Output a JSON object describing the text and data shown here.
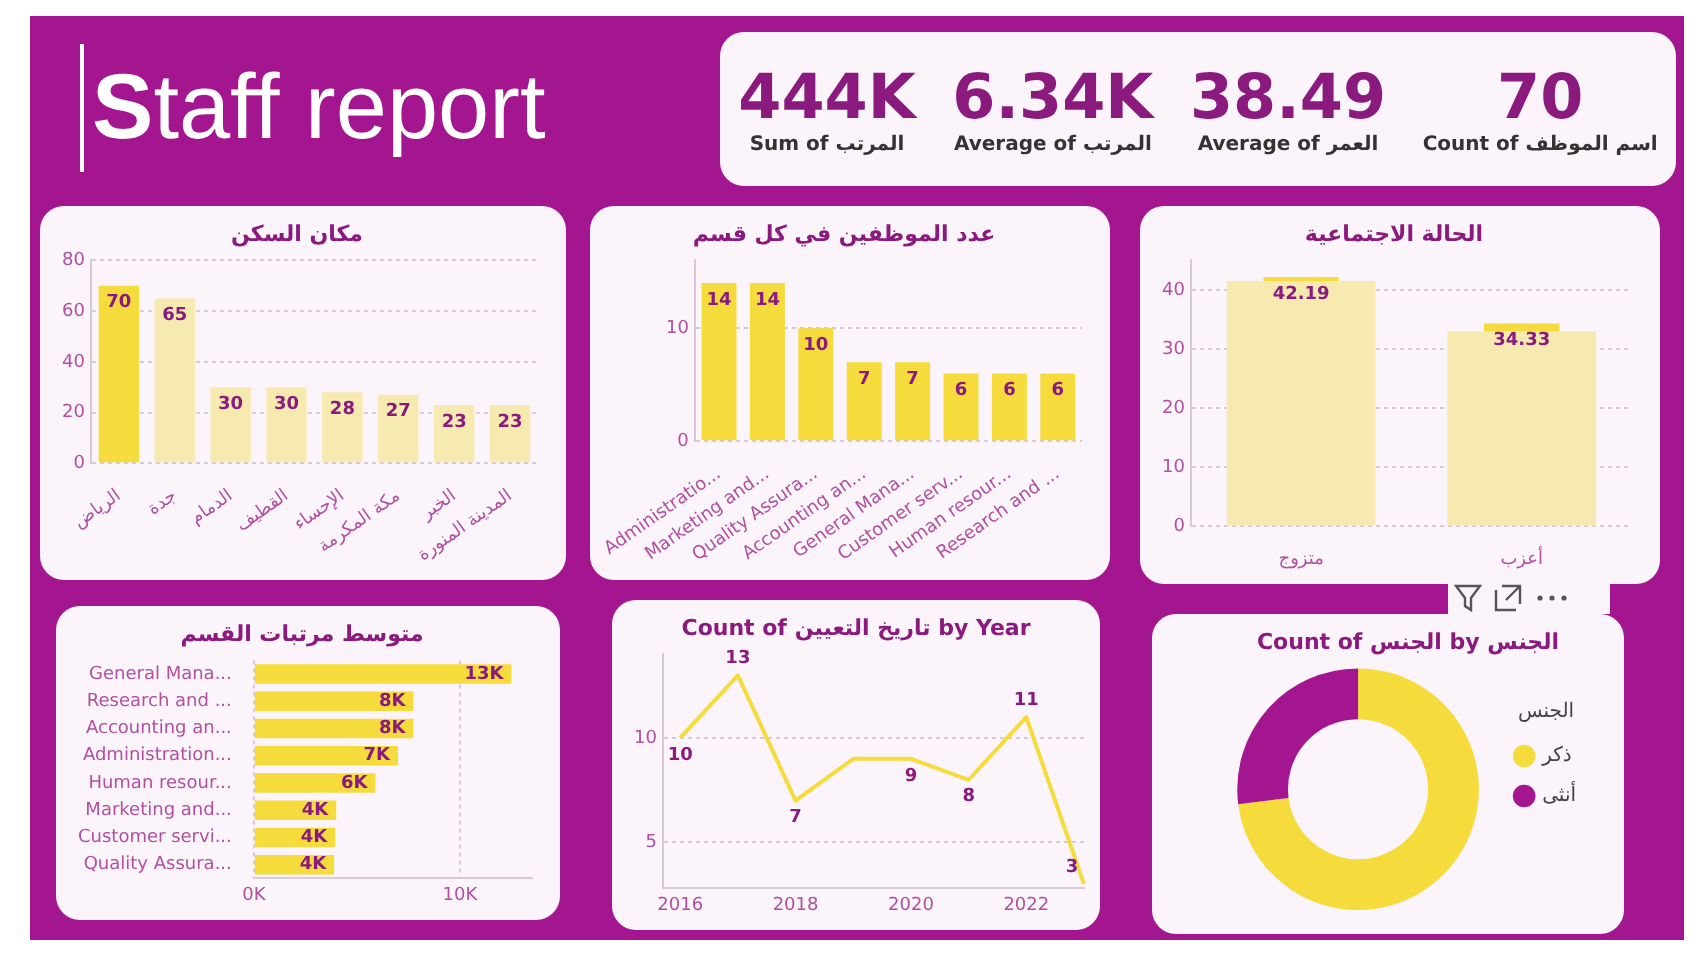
{
  "chart_data": [
    {
      "type": "other",
      "title": "Staff report",
      "categories": [
        "Sum of المرتب",
        "Average of المرتب",
        "Average of العمر",
        "Count of اسم الموظف"
      ],
      "value_labels": [
        "444K",
        "6.34K",
        "38.49",
        "70"
      ]
    },
    {
      "type": "bar",
      "title": "مكان السكن",
      "categories": [
        "الرياض",
        "جدة",
        "الدمام",
        "القطيف",
        "الإحساء",
        "مكة المكرمة",
        "الخبر",
        "المدينة المنورة"
      ],
      "values": [
        70,
        65,
        30,
        30,
        28,
        27,
        23,
        23
      ],
      "colors": [
        "#f5dc3c",
        "#f7eab0",
        "#f7eab0",
        "#f7eab0",
        "#f7eab0",
        "#f7eab0",
        "#f7eab0",
        "#f7eab0"
      ],
      "ylim": [
        0,
        80
      ],
      "yticks": [
        0,
        20,
        40,
        60,
        80
      ],
      "grid": "y",
      "data_labels": true
    },
    {
      "type": "bar",
      "title": "عدد الموظفين في كل قسم",
      "categories": [
        "Administratio...",
        "Marketing and...",
        "Quality Assura...",
        "Accounting an...",
        "General Mana...",
        "Customer serv...",
        "Human resour...",
        "Research and ..."
      ],
      "values": [
        14,
        14,
        10,
        7,
        7,
        6,
        6,
        6
      ],
      "color": "#f5dc3c",
      "ylim": [
        0,
        16
      ],
      "yticks": [
        0,
        10
      ],
      "grid": "y",
      "data_labels": true
    },
    {
      "type": "bar",
      "title": "الحالة الاجتماعية",
      "categories": [
        "متزوج",
        "أعزب"
      ],
      "series": [
        {
          "color": "#f7eab0",
          "values": [
            41.5,
            33
          ]
        },
        {
          "color": "#f5dc3c",
          "values": [
            42.19,
            34.33
          ],
          "value_labels": [
            "42.19",
            "34.33"
          ]
        }
      ],
      "ylim": [
        0,
        45
      ],
      "yticks": [
        0,
        10,
        20,
        30,
        40
      ],
      "grid": "y"
    },
    {
      "type": "bar",
      "orientation": "horizontal",
      "title": "متوسط مرتبات القسم",
      "categories": [
        "General Mana...",
        "Research and ...",
        "Accounting an...",
        "Administration...",
        "Human resour...",
        "Marketing and...",
        "Customer servi...",
        "Quality Assura..."
      ],
      "values": [
        12500,
        7750,
        7750,
        7000,
        5900,
        4000,
        3950,
        3900
      ],
      "value_labels": [
        "13K",
        "8K",
        "8K",
        "7K",
        "6K",
        "4K",
        "4K",
        "4K"
      ],
      "color": "#f5dc3c",
      "xlim": [
        0,
        13500
      ],
      "xticks": [
        {
          "value": 0,
          "label": "0K"
        },
        {
          "value": 10000,
          "label": "10K"
        }
      ],
      "grid": "x"
    },
    {
      "type": "line",
      "title": "Count of تاريخ التعيين by Year",
      "x": [
        2016,
        2017,
        2018,
        2019,
        2020,
        2021,
        2022,
        2023
      ],
      "values": [
        10,
        13,
        7,
        9,
        9,
        8,
        11,
        3
      ],
      "value_labels": [
        "10",
        "13",
        "7",
        null,
        "9",
        "8",
        "11",
        "3"
      ],
      "color": "#f5dc3c",
      "xlim": [
        2015.7,
        2023
      ],
      "xticks": [
        2016,
        2018,
        2020,
        2022
      ],
      "ylim": [
        2.8,
        14
      ],
      "yticks": [
        5,
        10
      ],
      "grid": "y"
    },
    {
      "type": "donut",
      "title": "Count of الجنس by الجنس",
      "categories": [
        "ذكر",
        "أنثى"
      ],
      "values": [
        73,
        27
      ],
      "colors": [
        "#f5dc3c",
        "#a3168f"
      ],
      "legend": "right",
      "legend_title": "الجنس"
    }
  ]
}
